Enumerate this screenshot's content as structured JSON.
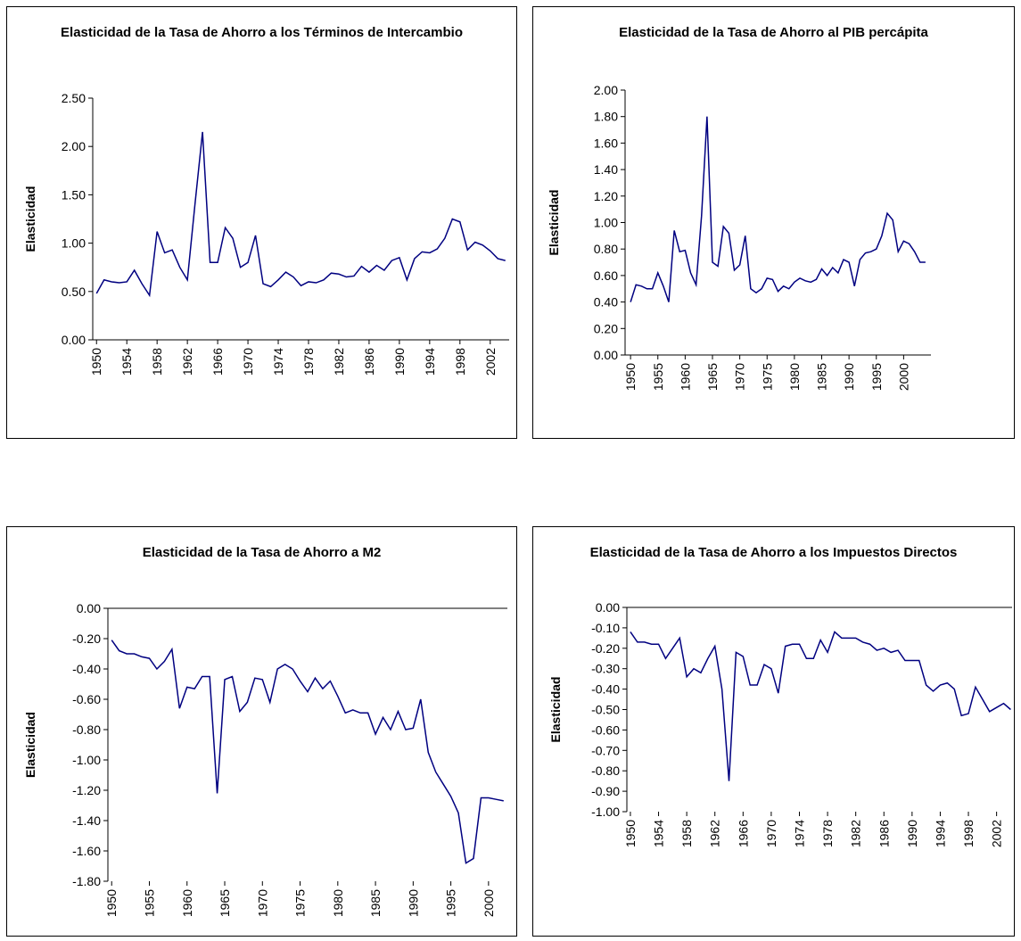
{
  "chart_data": [
    {
      "type": "line",
      "title": "Elasticidad de la Tasa de Ahorro a los Términos de Intercambio",
      "y_label": "Elasticidad",
      "color": "#000080",
      "x": [
        1950,
        1951,
        1952,
        1953,
        1954,
        1955,
        1956,
        1957,
        1958,
        1959,
        1960,
        1961,
        1962,
        1963,
        1964,
        1965,
        1966,
        1967,
        1968,
        1969,
        1970,
        1971,
        1972,
        1973,
        1974,
        1975,
        1976,
        1977,
        1978,
        1979,
        1980,
        1981,
        1982,
        1983,
        1984,
        1985,
        1986,
        1987,
        1988,
        1989,
        1990,
        1991,
        1992,
        1993,
        1994,
        1995,
        1996,
        1997,
        1998,
        1999,
        2000,
        2001,
        2002,
        2003,
        2004
      ],
      "values": [
        0.48,
        0.62,
        0.6,
        0.59,
        0.6,
        0.72,
        0.58,
        0.46,
        1.12,
        0.9,
        0.93,
        0.75,
        0.62,
        1.4,
        2.15,
        0.8,
        0.8,
        1.16,
        1.05,
        0.75,
        0.8,
        1.08,
        0.58,
        0.55,
        0.62,
        0.7,
        0.65,
        0.56,
        0.6,
        0.59,
        0.62,
        0.69,
        0.68,
        0.65,
        0.66,
        0.76,
        0.7,
        0.77,
        0.72,
        0.82,
        0.85,
        0.62,
        0.84,
        0.91,
        0.9,
        0.94,
        1.05,
        1.25,
        1.22,
        0.93,
        1.01,
        0.98,
        0.92,
        0.84,
        0.82
      ],
      "xlim": [
        1949.5,
        2004.5
      ],
      "xticks": [
        1950,
        1954,
        1958,
        1962,
        1966,
        1970,
        1974,
        1978,
        1982,
        1986,
        1990,
        1994,
        1998,
        2002
      ],
      "ylim": [
        0,
        2.5
      ],
      "yticks": [
        {
          "value": 0,
          "label": "0.00"
        },
        {
          "value": 0.5,
          "label": "0.50"
        },
        {
          "value": 1,
          "label": "1.00"
        },
        {
          "value": 1.5,
          "label": "1.50"
        },
        {
          "value": 2,
          "label": "2.00"
        },
        {
          "value": 2.5,
          "label": "2.50"
        }
      ]
    },
    {
      "type": "line",
      "title": "Elasticidad de la Tasa de Ahorro al PIB percápita",
      "y_label": "Elasticidad",
      "color": "#000080",
      "x": [
        1950,
        1951,
        1952,
        1953,
        1954,
        1955,
        1956,
        1957,
        1958,
        1959,
        1960,
        1961,
        1962,
        1963,
        1964,
        1965,
        1966,
        1967,
        1968,
        1969,
        1970,
        1971,
        1972,
        1973,
        1974,
        1975,
        1976,
        1977,
        1978,
        1979,
        1980,
        1981,
        1982,
        1983,
        1984,
        1985,
        1986,
        1987,
        1988,
        1989,
        1990,
        1991,
        1992,
        1993,
        1994,
        1995,
        1996,
        1997,
        1998,
        1999,
        2000,
        2001,
        2002,
        2003,
        2004
      ],
      "values": [
        0.4,
        0.53,
        0.52,
        0.5,
        0.5,
        0.62,
        0.52,
        0.4,
        0.94,
        0.78,
        0.79,
        0.62,
        0.53,
        1.05,
        1.8,
        0.7,
        0.67,
        0.97,
        0.92,
        0.64,
        0.68,
        0.9,
        0.5,
        0.47,
        0.5,
        0.58,
        0.57,
        0.48,
        0.52,
        0.5,
        0.55,
        0.58,
        0.56,
        0.55,
        0.57,
        0.65,
        0.6,
        0.66,
        0.62,
        0.72,
        0.7,
        0.52,
        0.72,
        0.77,
        0.78,
        0.8,
        0.9,
        1.07,
        1.02,
        0.78,
        0.86,
        0.84,
        0.78,
        0.7,
        0.7
      ],
      "xlim": [
        1949,
        2005
      ],
      "xticks": [
        1950,
        1955,
        1960,
        1965,
        1970,
        1975,
        1980,
        1985,
        1990,
        1995,
        2000
      ],
      "ylim": [
        0,
        2
      ],
      "yticks": [
        {
          "value": 0,
          "label": "0.00"
        },
        {
          "value": 0.2,
          "label": "0.20"
        },
        {
          "value": 0.4,
          "label": "0.40"
        },
        {
          "value": 0.6,
          "label": "0.60"
        },
        {
          "value": 0.8,
          "label": "0.80"
        },
        {
          "value": 1,
          "label": "1.00"
        },
        {
          "value": 1.2,
          "label": "1.20"
        },
        {
          "value": 1.4,
          "label": "1.40"
        },
        {
          "value": 1.6,
          "label": "1.60"
        },
        {
          "value": 1.8,
          "label": "1.80"
        },
        {
          "value": 2,
          "label": "2.00"
        }
      ]
    },
    {
      "type": "line",
      "title": "Elasticidad de la Tasa de Ahorro a M2",
      "y_label": "Elasticidad",
      "color": "#000080",
      "x": [
        1950,
        1951,
        1952,
        1953,
        1954,
        1955,
        1956,
        1957,
        1958,
        1959,
        1960,
        1961,
        1962,
        1963,
        1964,
        1965,
        1966,
        1967,
        1968,
        1969,
        1970,
        1971,
        1972,
        1973,
        1974,
        1975,
        1976,
        1977,
        1978,
        1979,
        1980,
        1981,
        1982,
        1983,
        1984,
        1985,
        1986,
        1987,
        1988,
        1989,
        1990,
        1991,
        1992,
        1993,
        1994,
        1995,
        1996,
        1997,
        1998,
        1999,
        2000,
        2001,
        2002
      ],
      "values": [
        -0.21,
        -0.28,
        -0.3,
        -0.3,
        -0.32,
        -0.33,
        -0.4,
        -0.35,
        -0.27,
        -0.66,
        -0.52,
        -0.53,
        -0.45,
        -0.45,
        -1.22,
        -0.47,
        -0.45,
        -0.68,
        -0.62,
        -0.46,
        -0.47,
        -0.62,
        -0.4,
        -0.37,
        -0.4,
        -0.48,
        -0.55,
        -0.46,
        -0.53,
        -0.48,
        -0.58,
        -0.69,
        -0.67,
        -0.69,
        -0.69,
        -0.83,
        -0.72,
        -0.8,
        -0.68,
        -0.8,
        -0.79,
        -0.6,
        -0.95,
        -1.08,
        -1.16,
        -1.24,
        -1.35,
        -1.68,
        -1.65,
        -1.25,
        -1.25,
        -1.26,
        -1.27
      ],
      "xlim": [
        1949.5,
        2002.5
      ],
      "xticks": [
        1950,
        1955,
        1960,
        1965,
        1970,
        1975,
        1980,
        1985,
        1990,
        1995,
        2000
      ],
      "ylim": [
        -1.8,
        0
      ],
      "yticks": [
        {
          "value": -1.8,
          "label": "-1.80"
        },
        {
          "value": -1.6,
          "label": "-1.60"
        },
        {
          "value": -1.4,
          "label": "-1.40"
        },
        {
          "value": -1.2,
          "label": "-1.20"
        },
        {
          "value": -1,
          "label": "-1.00"
        },
        {
          "value": -0.8,
          "label": "-0.80"
        },
        {
          "value": -0.6,
          "label": "-0.60"
        },
        {
          "value": -0.4,
          "label": "-0.40"
        },
        {
          "value": -0.2,
          "label": "-0.20"
        },
        {
          "value": 0,
          "label": "0.00"
        }
      ]
    },
    {
      "type": "line",
      "title": "Elasticidad de la Tasa de Ahorro a los Impuestos Directos",
      "y_label": "Elasticidad",
      "color": "#000080",
      "x": [
        1950,
        1951,
        1952,
        1953,
        1954,
        1955,
        1956,
        1957,
        1958,
        1959,
        1960,
        1961,
        1962,
        1963,
        1964,
        1965,
        1966,
        1967,
        1968,
        1969,
        1970,
        1971,
        1972,
        1973,
        1974,
        1975,
        1976,
        1977,
        1978,
        1979,
        1980,
        1981,
        1982,
        1983,
        1984,
        1985,
        1986,
        1987,
        1988,
        1989,
        1990,
        1991,
        1992,
        1993,
        1994,
        1995,
        1996,
        1997,
        1998,
        1999,
        2000,
        2001,
        2002,
        2003,
        2004
      ],
      "values": [
        -0.12,
        -0.17,
        -0.17,
        -0.18,
        -0.18,
        -0.25,
        -0.2,
        -0.15,
        -0.34,
        -0.3,
        -0.32,
        -0.25,
        -0.19,
        -0.4,
        -0.85,
        -0.22,
        -0.24,
        -0.38,
        -0.38,
        -0.28,
        -0.3,
        -0.42,
        -0.19,
        -0.18,
        -0.18,
        -0.25,
        -0.25,
        -0.16,
        -0.22,
        -0.12,
        -0.15,
        -0.15,
        -0.15,
        -0.17,
        -0.18,
        -0.21,
        -0.2,
        -0.22,
        -0.21,
        -0.26,
        -0.26,
        -0.26,
        -0.38,
        -0.41,
        -0.38,
        -0.37,
        -0.4,
        -0.53,
        -0.52,
        -0.39,
        -0.45,
        -0.51,
        -0.49,
        -0.47,
        -0.5
      ],
      "xlim": [
        1949.5,
        2004.2
      ],
      "xticks": [
        1950,
        1954,
        1958,
        1962,
        1966,
        1970,
        1974,
        1978,
        1982,
        1986,
        1990,
        1994,
        1998,
        2002
      ],
      "ylim": [
        -1,
        0
      ],
      "yticks": [
        {
          "value": -1,
          "label": "-1.00"
        },
        {
          "value": -0.9,
          "label": "-0.90"
        },
        {
          "value": -0.8,
          "label": "-0.80"
        },
        {
          "value": -0.7,
          "label": "-0.70"
        },
        {
          "value": -0.6,
          "label": "-0.60"
        },
        {
          "value": -0.5,
          "label": "-0.50"
        },
        {
          "value": -0.4,
          "label": "-0.40"
        },
        {
          "value": -0.3,
          "label": "-0.30"
        },
        {
          "value": -0.2,
          "label": "-0.20"
        },
        {
          "value": -0.1,
          "label": "-0.10"
        },
        {
          "value": 0,
          "label": "0.00"
        }
      ]
    }
  ]
}
